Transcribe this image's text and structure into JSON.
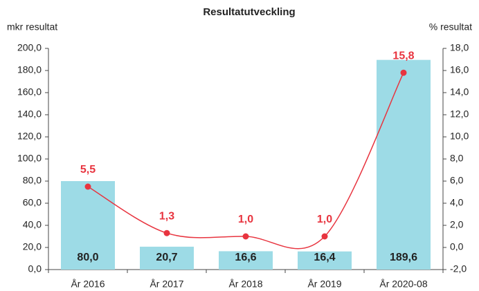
{
  "chart_data": {
    "type": "combo",
    "title": "Resultatutveckling",
    "y_label": "mkr resultat",
    "y2_label": "% resultat",
    "categories": [
      "År 2016",
      "År 2017",
      "År 2018",
      "År 2019",
      "År 2020-08"
    ],
    "series": [
      {
        "type": "bar",
        "color": "#9ddbe6",
        "values": [
          80.0,
          20.7,
          16.6,
          16.4,
          189.6
        ],
        "value_labels": [
          "80,0",
          "20,7",
          "16,6",
          "16,4",
          "189,6"
        ]
      },
      {
        "type": "line",
        "axis": "y2",
        "color": "#e8343f",
        "values": [
          5.5,
          1.3,
          1.0,
          1.0,
          15.8
        ],
        "value_labels": [
          "5,5",
          "1,3",
          "1,0",
          "1,0",
          "15,8"
        ]
      }
    ],
    "ylim": [
      0,
      200
    ],
    "yticks": [
      {
        "value": 0,
        "label": "0,0"
      },
      {
        "value": 20,
        "label": "20,0"
      },
      {
        "value": 40,
        "label": "40,0"
      },
      {
        "value": 60,
        "label": "60,0"
      },
      {
        "value": 80,
        "label": "80,0"
      },
      {
        "value": 100,
        "label": "100,0"
      },
      {
        "value": 120,
        "label": "120,0"
      },
      {
        "value": 140,
        "label": "140,0"
      },
      {
        "value": 160,
        "label": "160,0"
      },
      {
        "value": 180,
        "label": "180,0"
      },
      {
        "value": 200,
        "label": "200,0"
      }
    ],
    "y2lim": [
      -2,
      18
    ],
    "y2ticks": [
      {
        "value": -2,
        "label": "-2,0"
      },
      {
        "value": 0,
        "label": "0,0"
      },
      {
        "value": 2,
        "label": "2,0"
      },
      {
        "value": 4,
        "label": "4,0"
      },
      {
        "value": 6,
        "label": "6,0"
      },
      {
        "value": 8,
        "label": "8,0"
      },
      {
        "value": 10,
        "label": "10,0"
      },
      {
        "value": 12,
        "label": "12,0"
      },
      {
        "value": 14,
        "label": "14,0"
      },
      {
        "value": 16,
        "label": "16,0"
      },
      {
        "value": 18,
        "label": "18,0"
      }
    ]
  }
}
